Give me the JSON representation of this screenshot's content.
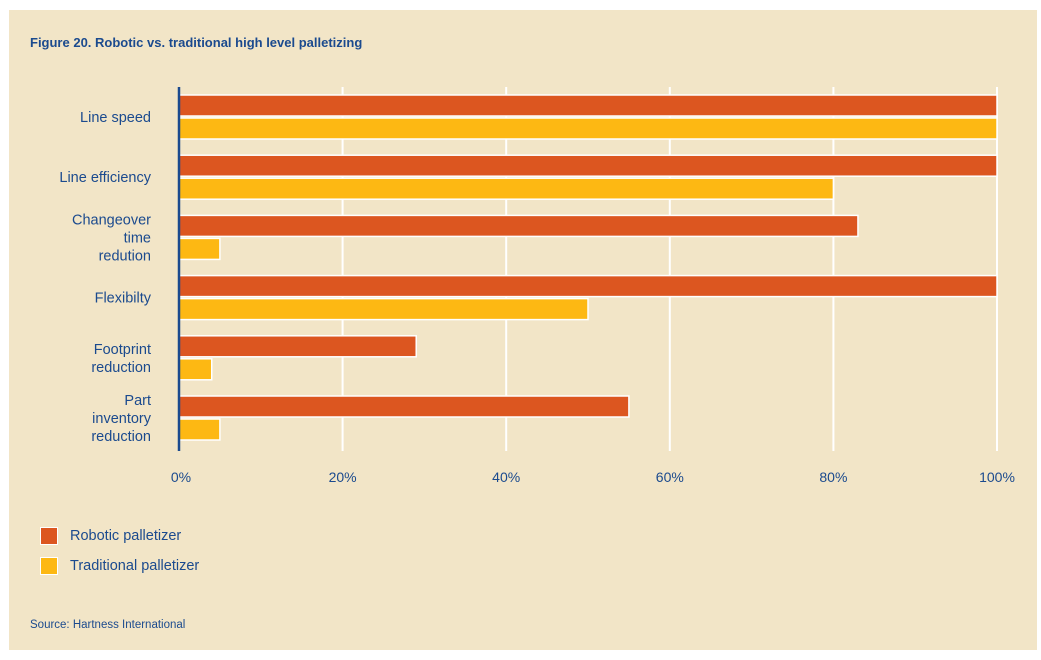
{
  "title": "Figure 20. Robotic vs. traditional high level palletizing",
  "source": "Source: Hartness International",
  "colors": {
    "background": "#f2e5c7",
    "robotic": "#dc5620",
    "traditional": "#fdb813",
    "axis": "#1b4a8e",
    "grid": "#ffffff"
  },
  "legend": {
    "robotic": "Robotic palletizer",
    "traditional": "Traditional palletizer"
  },
  "chart_data": {
    "type": "bar",
    "orientation": "horizontal",
    "categories": [
      "Line speed",
      "Line efficiency",
      "Changeover time redution",
      "Flexibilty",
      "Footprint reduction",
      "Part inventory reduction"
    ],
    "category_lines": [
      [
        "Line speed"
      ],
      [
        "Line efficiency"
      ],
      [
        "Changeover",
        "time",
        "redution"
      ],
      [
        "Flexibilty"
      ],
      [
        "Footprint",
        "reduction"
      ],
      [
        "Part",
        "inventory",
        "reduction"
      ]
    ],
    "series": [
      {
        "name": "Robotic palletizer",
        "values": [
          100,
          100,
          83,
          100,
          29,
          55
        ]
      },
      {
        "name": "Traditional palletizer",
        "values": [
          100,
          80,
          5,
          50,
          4,
          5
        ]
      }
    ],
    "xlim": [
      0,
      100
    ],
    "xticks": [
      "0%",
      "20%",
      "40%",
      "60%",
      "80%",
      "100%"
    ],
    "grid": true,
    "legend_position": "bottom-left"
  }
}
